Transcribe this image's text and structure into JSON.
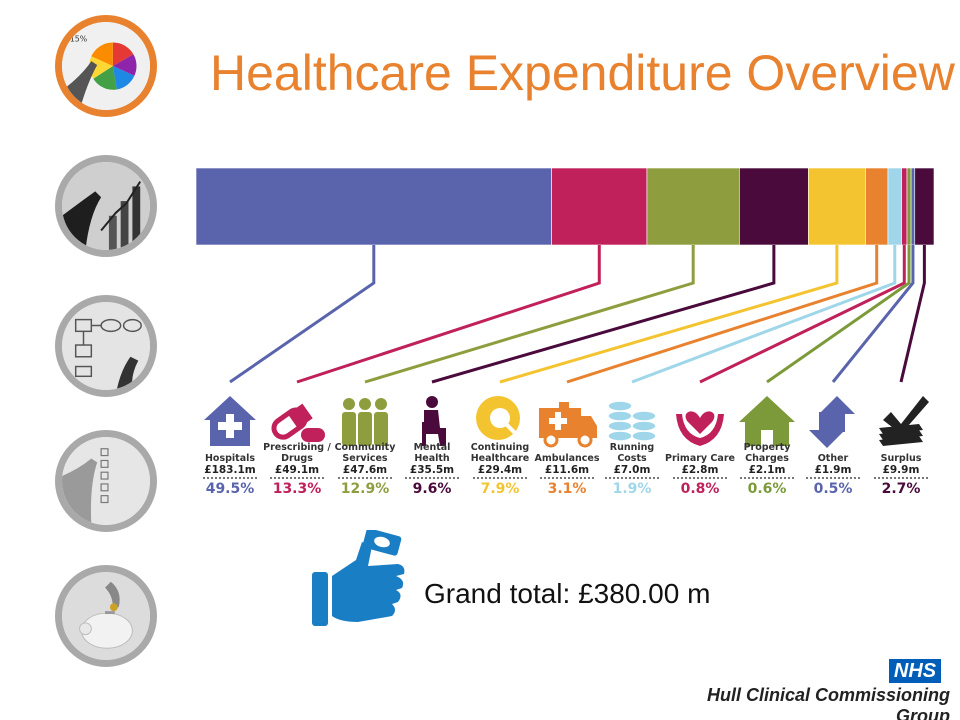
{
  "slide": {
    "title": "Healthcare Expenditure Overview",
    "grand_total_label": "Grand total:",
    "grand_total_value": "£380.00 m"
  },
  "branding": {
    "badge": "NHS",
    "organisation": "Hull Clinical Commissioning Group"
  },
  "nav_thumbnails": [
    {
      "name": "pie-chart-thumbnail",
      "active": true
    },
    {
      "name": "bar-chart-thumbnail",
      "active": false
    },
    {
      "name": "flowchart-thumbnail",
      "active": false
    },
    {
      "name": "checklist-thumbnail",
      "active": false
    },
    {
      "name": "piggy-bank-thumbnail",
      "active": false
    }
  ],
  "chart_data": {
    "type": "bar",
    "orientation": "stacked-horizontal",
    "title": "",
    "categories": [
      {
        "label": "Hospitals",
        "value": 183.1,
        "value_label": "£183.1m",
        "percent": 49.5,
        "percent_label": "49.5%",
        "color": "#5a64ad",
        "icon": "hospital-house-icon"
      },
      {
        "label": "Prescribing / Drugs",
        "value": 49.1,
        "value_label": "£49.1m",
        "percent": 13.3,
        "percent_label": "13.3%",
        "color": "#c0215a",
        "icon": "pill-capsule-icon"
      },
      {
        "label": "Community Services",
        "value": 47.6,
        "value_label": "£47.6m",
        "percent": 12.9,
        "percent_label": "12.9%",
        "color": "#8e9e3e",
        "icon": "people-group-icon"
      },
      {
        "label": "Mental Health",
        "value": 35.5,
        "value_label": "£35.5m",
        "percent": 9.6,
        "percent_label": "9.6%",
        "color": "#4a0a3c",
        "icon": "seated-person-icon"
      },
      {
        "label": "Continuing Healthcare",
        "value": 29.4,
        "value_label": "£29.4m",
        "percent": 7.9,
        "percent_label": "7.9%",
        "color": "#f4c430",
        "icon": "heart-magnifier-icon"
      },
      {
        "label": "Ambulances",
        "value": 11.6,
        "value_label": "£11.6m",
        "percent": 3.1,
        "percent_label": "3.1%",
        "color": "#e8822f",
        "icon": "ambulance-icon"
      },
      {
        "label": "Running Costs",
        "value": 7.0,
        "value_label": "£7.0m",
        "percent": 1.9,
        "percent_label": "1.9%",
        "color": "#9fd6ea",
        "icon": "coin-stack-icon"
      },
      {
        "label": "Primary Care",
        "value": 2.8,
        "value_label": "£2.8m",
        "percent": 0.8,
        "percent_label": "0.8%",
        "color": "#c0215a",
        "icon": "hands-heart-icon"
      },
      {
        "label": "Property Charges",
        "value": 2.1,
        "value_label": "£2.1m",
        "percent": 0.6,
        "percent_label": "0.6%",
        "color": "#7c9a3a",
        "icon": "house-icon"
      },
      {
        "label": "Other",
        "value": 1.9,
        "value_label": "£1.9m",
        "percent": 0.5,
        "percent_label": "0.5%",
        "color": "#5a64ad",
        "icon": "up-down-arrows-icon"
      },
      {
        "label": "Surplus",
        "value": 9.9,
        "value_label": "£9.9m",
        "percent": 2.7,
        "percent_label": "2.7%",
        "color": "#4a0a3c",
        "icon": "checkmark-papers-icon"
      }
    ],
    "total": 380.0,
    "legend": "none",
    "grid": false
  }
}
